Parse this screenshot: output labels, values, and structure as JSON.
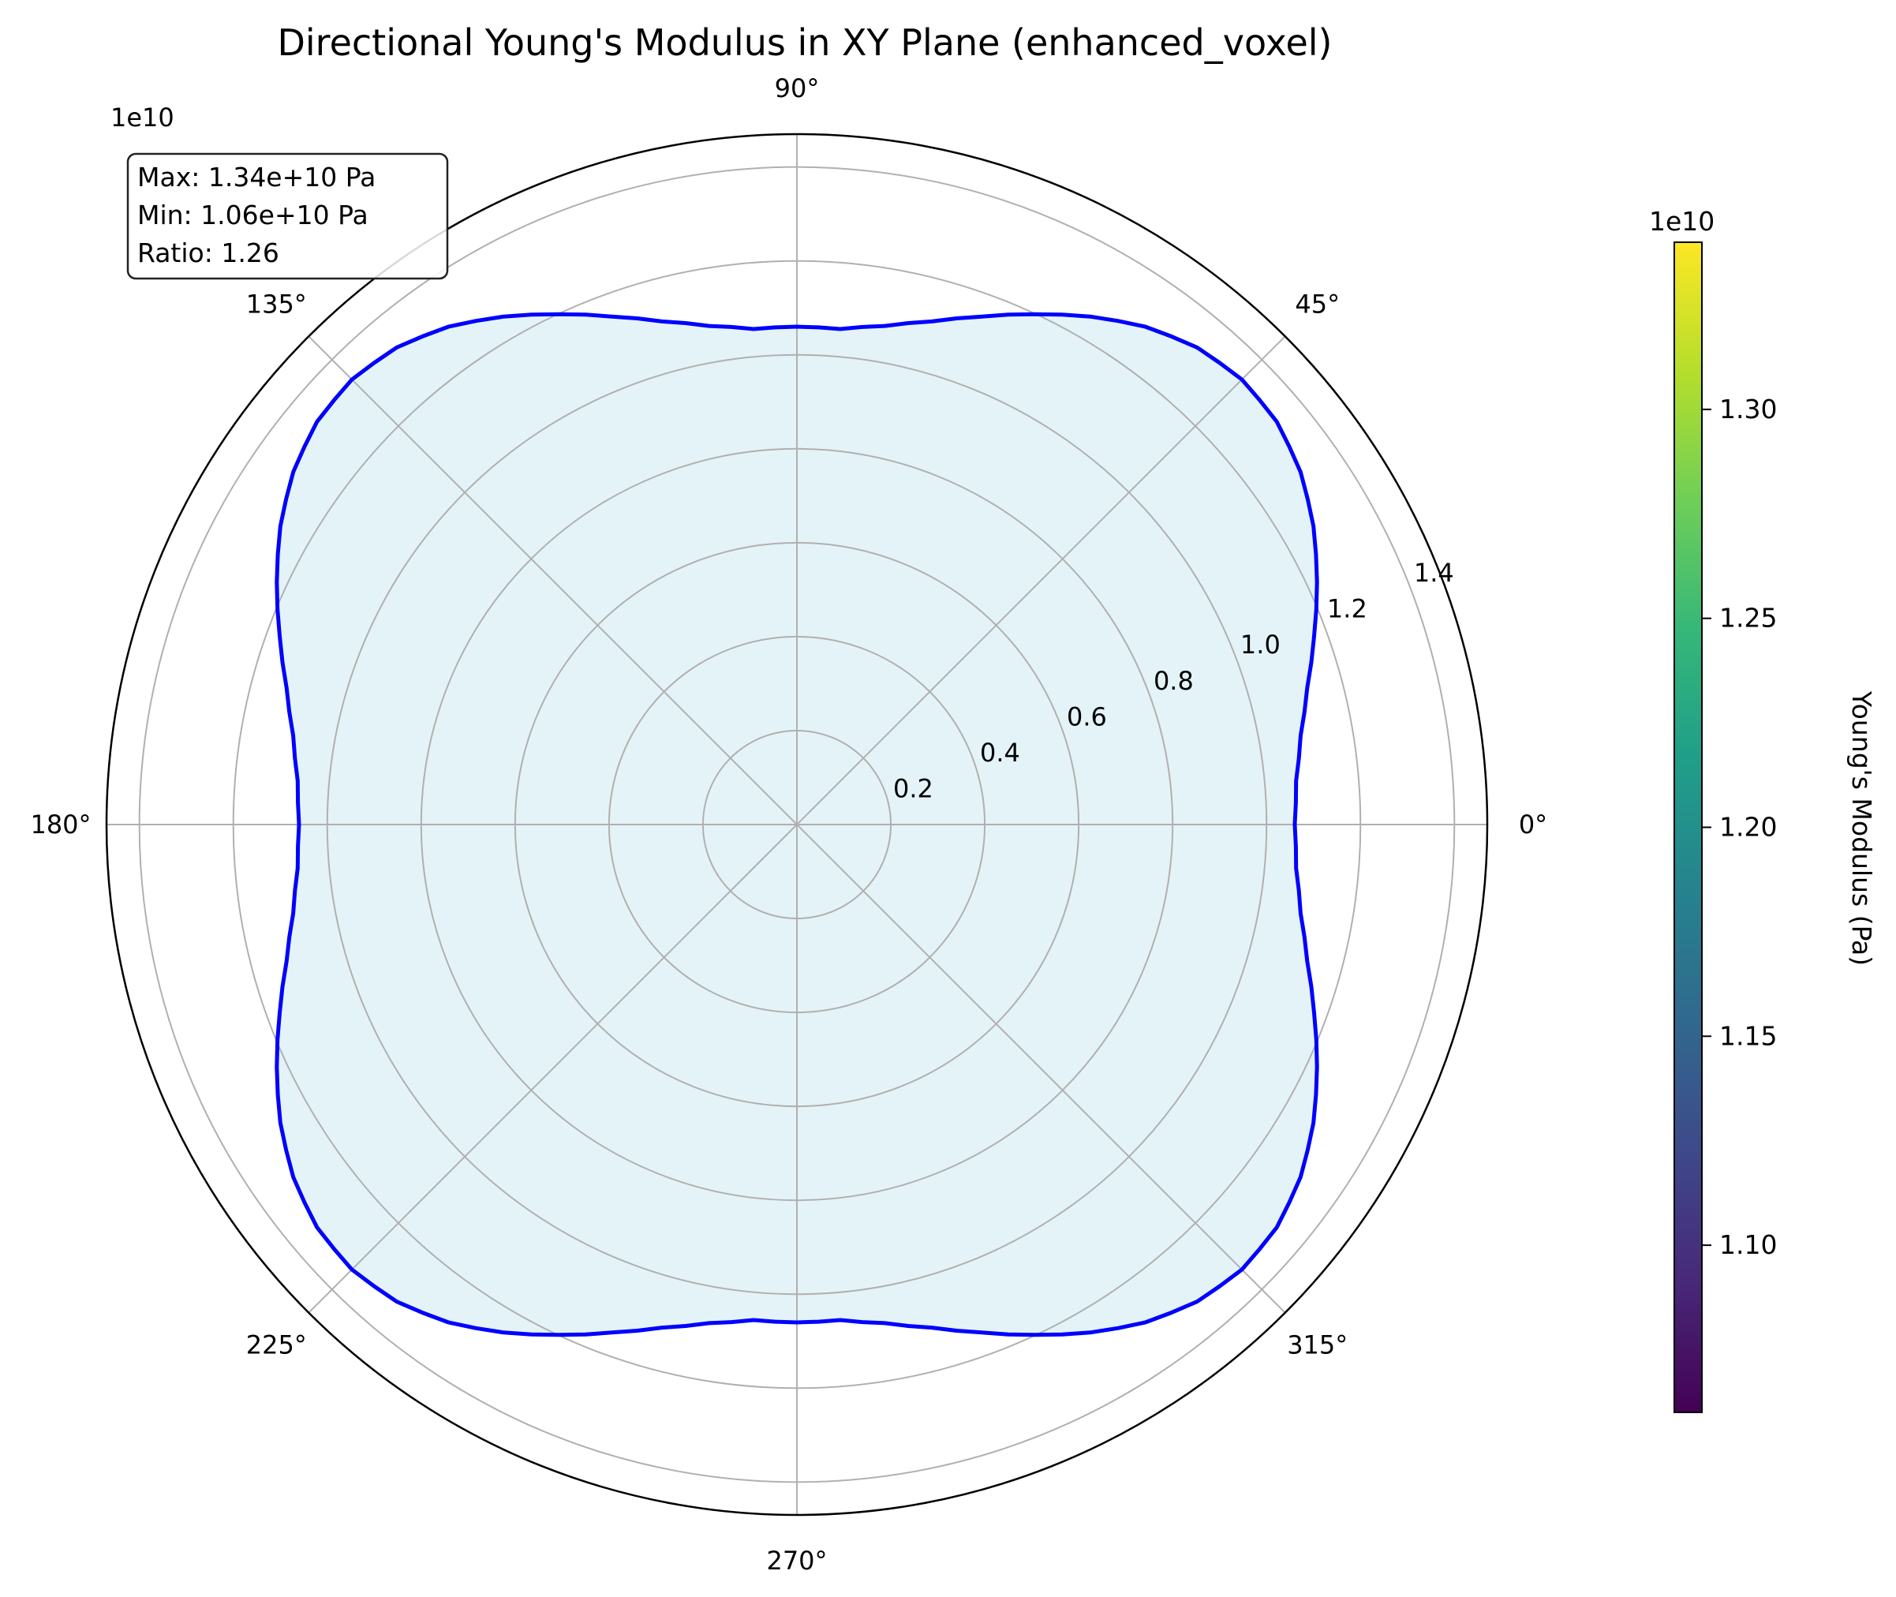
{
  "chart_data": {
    "type": "polar-line",
    "title": "Directional Young's Modulus in XY Plane (enhanced_voxel)",
    "angle_unit": "degrees",
    "angular_ticks": [
      0,
      45,
      90,
      135,
      180,
      225,
      270,
      315
    ],
    "angular_tick_labels": [
      "0°",
      "45°",
      "90°",
      "135°",
      "180°",
      "225°",
      "270°",
      "315°"
    ],
    "radial_offset_label": "1e10",
    "radial_ticks": [
      0.2,
      0.4,
      0.6,
      0.8,
      1.0,
      1.2,
      1.4
    ],
    "radial_tick_labels": [
      "0.2",
      "0.4",
      "0.6",
      "0.8",
      "1.0",
      "1.2",
      "1.4"
    ],
    "rlim": [
      0,
      1.47
    ],
    "grid": true,
    "series": [
      {
        "theta_deg": [
          0,
          5,
          10,
          15,
          20,
          25,
          30,
          35,
          40,
          45,
          50,
          55,
          60,
          65,
          70,
          75,
          80,
          85,
          90
        ],
        "r": [
          1.06,
          1.067,
          1.089,
          1.125,
          1.172,
          1.222,
          1.27,
          1.309,
          1.334,
          1.34,
          1.326,
          1.294,
          1.249,
          1.199,
          1.151,
          1.109,
          1.078,
          1.059,
          1.06
        ],
        "symmetry": "mirrored about 0° and 90° to complete 360°",
        "color": "#0000ff",
        "fill_color": "#e4f3f7"
      }
    ],
    "stats": {
      "lines": [
        "Max: 1.34e+10 Pa",
        "Min: 1.06e+10 Pa",
        "Ratio: 1.26"
      ]
    },
    "colorbar": {
      "label": "Young's Modulus (Pa)",
      "offset_label": "1e10",
      "range": [
        1.06,
        1.34
      ],
      "ticks": [
        1.1,
        1.15,
        1.2,
        1.25,
        1.3
      ],
      "tick_labels": [
        "1.10",
        "1.15",
        "1.20",
        "1.25",
        "1.30"
      ],
      "colormap": "viridis",
      "colormap_stops": [
        "#440154",
        "#482878",
        "#3e4989",
        "#31688e",
        "#26828e",
        "#1f9e89",
        "#35b779",
        "#6ece58",
        "#b5de2b",
        "#fde725"
      ]
    }
  }
}
